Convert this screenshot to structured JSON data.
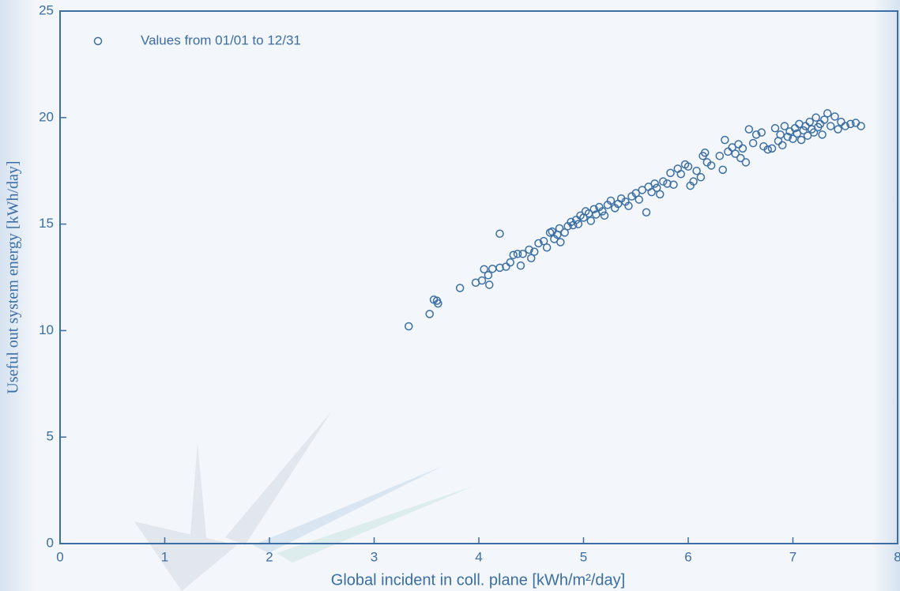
{
  "chart_data": {
    "type": "scatter",
    "xlabel": "Global incident in coll. plane [kWh/m²/day]",
    "ylabel": "Useful out system energy [kWh/day]",
    "xlim": [
      0,
      8
    ],
    "ylim": [
      0,
      25
    ],
    "xticks": [
      0,
      1,
      2,
      3,
      4,
      5,
      6,
      7,
      8
    ],
    "yticks": [
      0,
      5,
      10,
      15,
      20,
      25
    ],
    "legend": "upper left",
    "x": [
      3.33,
      3.53,
      3.57,
      3.6,
      3.61,
      3.82,
      3.97,
      4.03,
      4.05,
      4.1,
      4.09,
      4.13,
      4.2,
      4.2,
      4.26,
      4.3,
      4.33,
      4.37,
      4.4,
      4.42,
      4.48,
      4.5,
      4.53,
      4.57,
      4.62,
      4.65,
      4.68,
      4.7,
      4.72,
      4.75,
      4.77,
      4.78,
      4.82,
      4.85,
      4.88,
      4.9,
      4.93,
      4.95,
      4.97,
      5.0,
      5.02,
      5.05,
      5.07,
      5.1,
      5.12,
      5.15,
      5.18,
      5.2,
      5.23,
      5.26,
      5.3,
      5.33,
      5.36,
      5.4,
      5.43,
      5.46,
      5.5,
      5.53,
      5.56,
      5.6,
      5.62,
      5.65,
      5.68,
      5.7,
      5.73,
      5.76,
      5.8,
      5.83,
      5.86,
      5.9,
      5.93,
      5.97,
      6.0,
      6.02,
      6.05,
      6.08,
      6.12,
      6.14,
      6.16,
      6.18,
      6.22,
      6.3,
      6.33,
      6.35,
      6.38,
      6.42,
      6.45,
      6.48,
      6.5,
      6.52,
      6.55,
      6.58,
      6.62,
      6.65,
      6.7,
      6.72,
      6.76,
      6.8,
      6.83,
      6.86,
      6.88,
      6.9,
      6.92,
      6.95,
      6.97,
      7.0,
      7.02,
      7.04,
      7.06,
      7.08,
      7.1,
      7.12,
      7.14,
      7.16,
      7.18,
      7.2,
      7.22,
      7.24,
      7.26,
      7.28,
      7.3,
      7.33,
      7.36,
      7.4,
      7.43,
      7.46,
      7.5,
      7.55,
      7.6,
      7.65
    ],
    "series": [
      {
        "name": "Values from 01/01 to 12/31",
        "color": "#3b6ea5",
        "values": [
          10.2,
          10.78,
          11.45,
          11.4,
          11.27,
          12.0,
          12.25,
          12.35,
          12.88,
          12.15,
          12.6,
          12.9,
          12.95,
          14.55,
          13.0,
          13.2,
          13.55,
          13.6,
          13.05,
          13.6,
          13.8,
          13.4,
          13.7,
          14.1,
          14.2,
          13.9,
          14.6,
          14.65,
          14.3,
          14.5,
          14.8,
          14.15,
          14.6,
          14.9,
          15.1,
          14.95,
          15.2,
          15.0,
          15.4,
          15.3,
          15.6,
          15.5,
          15.15,
          15.7,
          15.45,
          15.8,
          15.6,
          15.4,
          15.9,
          16.1,
          15.75,
          15.95,
          16.2,
          16.05,
          15.85,
          16.3,
          16.45,
          16.15,
          16.6,
          15.55,
          16.75,
          16.5,
          16.9,
          16.7,
          16.4,
          17.0,
          16.9,
          17.4,
          16.85,
          17.6,
          17.35,
          17.8,
          17.7,
          16.8,
          17.0,
          17.5,
          17.2,
          18.2,
          18.35,
          17.9,
          17.75,
          18.2,
          17.55,
          18.95,
          18.4,
          18.6,
          18.3,
          18.75,
          18.1,
          18.55,
          17.9,
          19.45,
          18.8,
          19.2,
          19.3,
          18.65,
          18.5,
          18.55,
          19.5,
          18.9,
          19.2,
          18.7,
          19.6,
          19.1,
          19.35,
          19.0,
          19.5,
          19.25,
          19.7,
          18.95,
          19.4,
          19.6,
          19.15,
          19.8,
          19.45,
          19.3,
          20.0,
          19.55,
          19.7,
          19.2,
          19.9,
          20.2,
          19.6,
          20.05,
          19.45,
          19.8,
          19.6,
          19.7,
          19.75,
          19.6
        ]
      }
    ]
  }
}
